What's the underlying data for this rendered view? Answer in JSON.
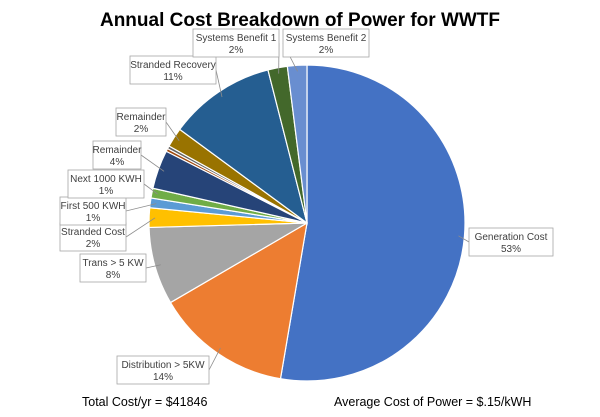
{
  "chart_data": {
    "type": "pie",
    "title": "Annual Cost Breakdown of Power for WWTF",
    "slices": [
      {
        "label": "Generation Cost",
        "display": "53%",
        "value": 53,
        "color": "#4472C4"
      },
      {
        "label": "Distribution > 5KW",
        "display": "14%",
        "value": 14,
        "color": "#ED7D31"
      },
      {
        "label": "Trans > 5 KW",
        "display": "8%",
        "value": 8,
        "color": "#A5A5A5"
      },
      {
        "label": "Stranded Cost",
        "display": "2%",
        "value": 2,
        "color": "#FFC000"
      },
      {
        "label": "First 500 KWH",
        "display": "1%",
        "value": 1,
        "color": "#5B9BD5"
      },
      {
        "label": "Next 1000 KWH",
        "display": "1%",
        "value": 1,
        "color": "#70AD47"
      },
      {
        "label": "Remainder",
        "display": "4%",
        "value": 4,
        "color": "#264478"
      },
      {
        "label": "",
        "display": "",
        "value": 0.3,
        "color": "#9E480E"
      },
      {
        "label": "",
        "display": "",
        "value": 0.3,
        "color": "#636363"
      },
      {
        "label": "Remainder",
        "display": "2%",
        "value": 2,
        "color": "#997300"
      },
      {
        "label": "Stranded Recovery",
        "display": "11%",
        "value": 11,
        "color": "#255E91"
      },
      {
        "label": "Systems Benefit 1",
        "display": "2%",
        "value": 2,
        "color": "#43682B"
      },
      {
        "label": "Systems Benefit 2",
        "display": "2%",
        "value": 2,
        "color": "#698ED0"
      }
    ],
    "legend": "none"
  },
  "footer": {
    "total_cost": "Total Cost/yr = $41846",
    "average_cost": "Average Cost of Power = $.15/kWH"
  }
}
